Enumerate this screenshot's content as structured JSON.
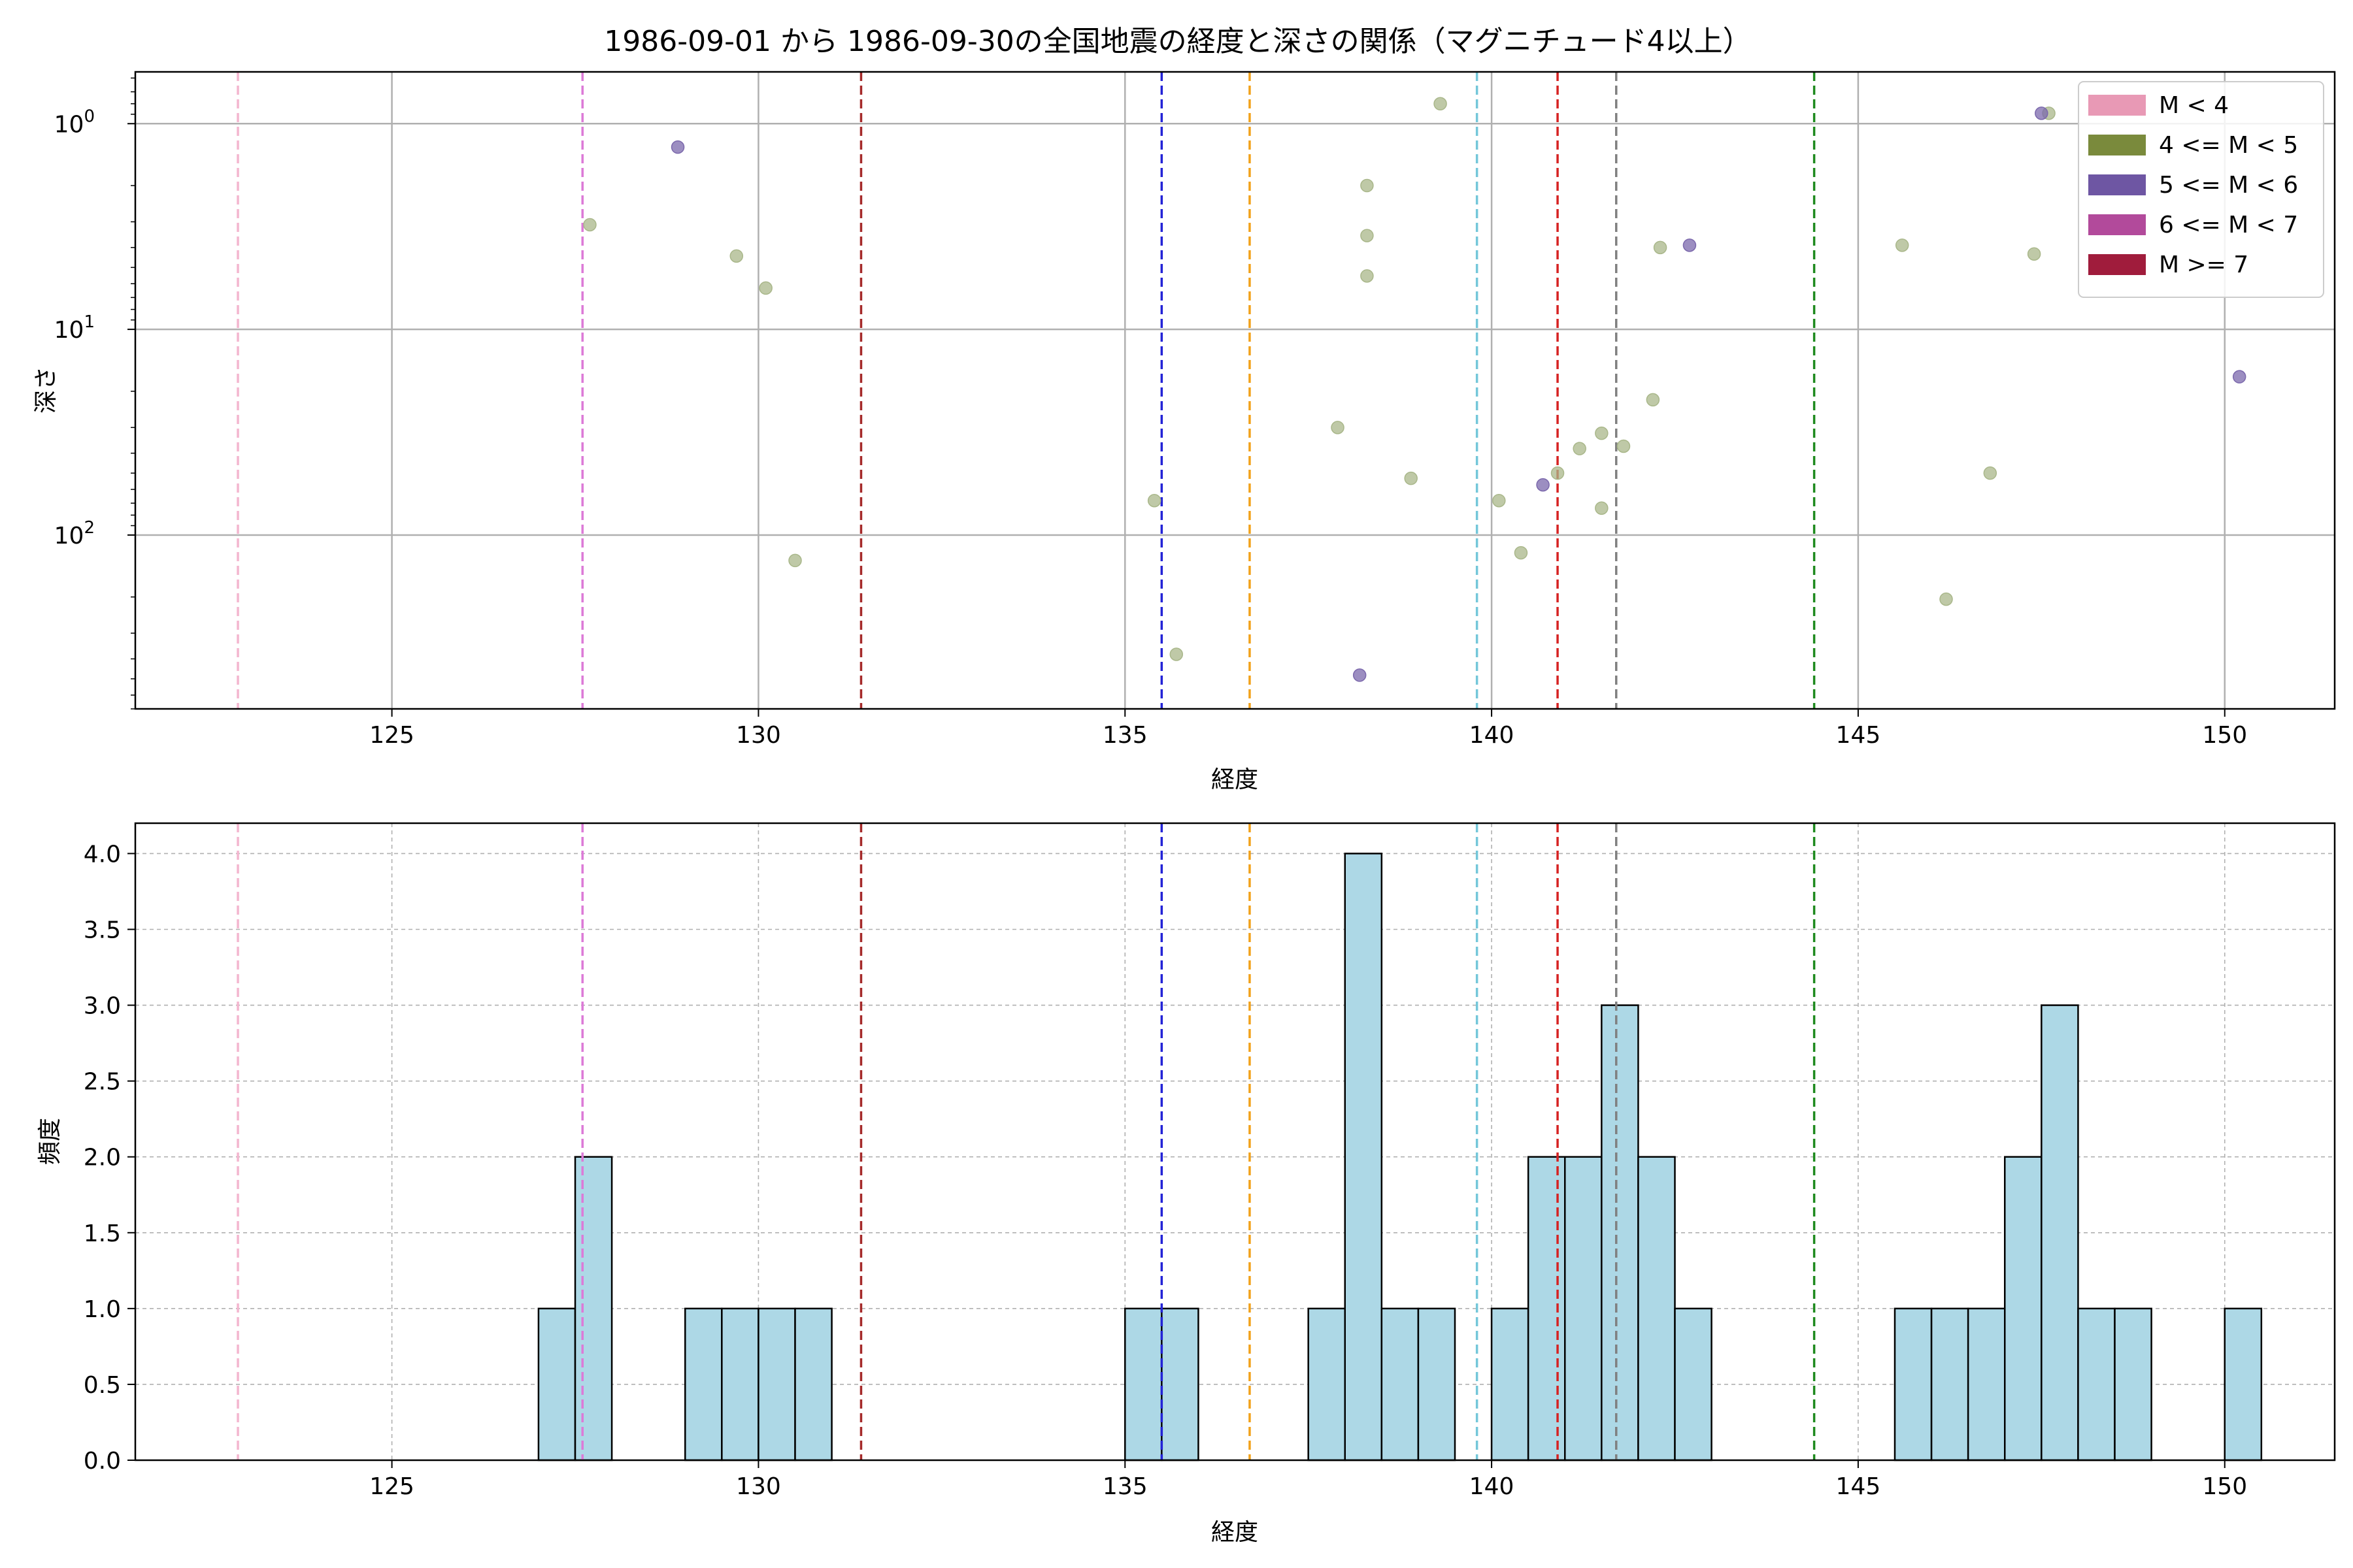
{
  "chart_data": [
    {
      "type": "scatter",
      "title": "1986-09-01 から 1986-09-30の全国地震の経度と深さの関係（マグニチュード4以上）",
      "xlabel": "経度",
      "ylabel": "深さ",
      "xlim": [
        121.5,
        151.5
      ],
      "ylim_log": [
        700,
        0.56
      ],
      "y_scale": "log",
      "y_inverted": true,
      "grid": true,
      "x_ticks": [
        125,
        130,
        135,
        140,
        145,
        150
      ],
      "x_tick_labels": [
        "125",
        "130",
        "135",
        "140",
        "145",
        "150"
      ],
      "y_ticks": [
        1,
        10,
        100
      ],
      "y_tick_labels": [
        "10^0",
        "10^1",
        "10^2"
      ],
      "legend": {
        "placement": "top-right",
        "entries": [
          {
            "label": "M < 4",
            "color": "#e899b5"
          },
          {
            "label": "4 <= M < 5",
            "color": "#7a8a3c"
          },
          {
            "label": "5 <= M < 6",
            "color": "#6e56a3"
          },
          {
            "label": "6 <= M < 7",
            "color": "#b24a9b"
          },
          {
            "label": "M >= 7",
            "color": "#a01c3c"
          }
        ]
      },
      "series": [
        {
          "color": "#a9b78a",
          "points": [
            [
              127.7,
              3.1
            ],
            [
              129.7,
              4.4
            ],
            [
              130.1,
              6.3
            ],
            [
              130.5,
              133
            ],
            [
              135.4,
              68
            ],
            [
              135.7,
              380
            ],
            [
              137.9,
              30
            ],
            [
              138.3,
              2.0
            ],
            [
              138.3,
              3.5
            ],
            [
              138.3,
              5.5
            ],
            [
              138.9,
              53
            ],
            [
              139.3,
              0.8
            ],
            [
              140.1,
              68
            ],
            [
              140.4,
              122
            ],
            [
              140.9,
              50
            ],
            [
              141.2,
              38
            ],
            [
              141.5,
              32
            ],
            [
              141.5,
              74
            ],
            [
              141.8,
              37
            ],
            [
              142.2,
              22
            ],
            [
              142.3,
              4.0
            ],
            [
              145.6,
              3.9
            ],
            [
              146.2,
              205
            ],
            [
              146.8,
              50
            ],
            [
              147.4,
              4.3
            ],
            [
              147.6,
              0.89
            ]
          ]
        },
        {
          "color": "#7b68ac",
          "points": [
            [
              128.9,
              1.3
            ],
            [
              138.2,
              480
            ],
            [
              140.7,
              57
            ],
            [
              142.7,
              3.9
            ],
            [
              147.5,
              0.89
            ],
            [
              150.2,
              17
            ]
          ]
        }
      ],
      "vlines": [
        {
          "x": 122.9,
          "color": "#f4b6cf"
        },
        {
          "x": 127.6,
          "color": "#dc7ad7"
        },
        {
          "x": 131.4,
          "color": "#a52a2a"
        },
        {
          "x": 135.5,
          "color": "#2323d6"
        },
        {
          "x": 136.7,
          "color": "#f2a11a"
        },
        {
          "x": 139.8,
          "color": "#74c7d9"
        },
        {
          "x": 140.9,
          "color": "#d62222"
        },
        {
          "x": 141.7,
          "color": "#808080"
        },
        {
          "x": 144.4,
          "color": "#1e8a1e"
        }
      ]
    },
    {
      "type": "bar",
      "xlabel": "経度",
      "ylabel": "頻度",
      "xlim": [
        121.5,
        151.5
      ],
      "ylim": [
        0,
        4.2
      ],
      "grid": true,
      "bin_width": 0.5,
      "bar_color": "#add8e6",
      "x_ticks": [
        125,
        130,
        135,
        140,
        145,
        150
      ],
      "x_tick_labels": [
        "125",
        "130",
        "135",
        "140",
        "145",
        "150"
      ],
      "y_ticks": [
        0,
        0.5,
        1.0,
        1.5,
        2.0,
        2.5,
        3.0,
        3.5,
        4.0
      ],
      "y_tick_labels": [
        "0.0",
        "0.5",
        "1.0",
        "1.5",
        "2.0",
        "2.5",
        "3.0",
        "3.5",
        "4.0"
      ],
      "bins": [
        {
          "x": 127.0,
          "count": 1
        },
        {
          "x": 127.5,
          "count": 2
        },
        {
          "x": 129.0,
          "count": 1
        },
        {
          "x": 129.5,
          "count": 1
        },
        {
          "x": 130.0,
          "count": 1
        },
        {
          "x": 130.5,
          "count": 1
        },
        {
          "x": 135.0,
          "count": 1
        },
        {
          "x": 135.5,
          "count": 1
        },
        {
          "x": 137.5,
          "count": 1
        },
        {
          "x": 138.0,
          "count": 4
        },
        {
          "x": 138.5,
          "count": 1
        },
        {
          "x": 139.0,
          "count": 1
        },
        {
          "x": 140.0,
          "count": 1
        },
        {
          "x": 140.5,
          "count": 2
        },
        {
          "x": 141.0,
          "count": 2
        },
        {
          "x": 141.5,
          "count": 3
        },
        {
          "x": 142.0,
          "count": 2
        },
        {
          "x": 142.5,
          "count": 1
        },
        {
          "x": 145.5,
          "count": 1
        },
        {
          "x": 146.0,
          "count": 1
        },
        {
          "x": 146.5,
          "count": 1
        },
        {
          "x": 147.0,
          "count": 2
        },
        {
          "x": 147.5,
          "count": 3
        },
        {
          "x": 148.0,
          "count": 1
        },
        {
          "x": 148.5,
          "count": 1
        },
        {
          "x": 150.0,
          "count": 1
        }
      ],
      "vlines": [
        {
          "x": 122.9,
          "color": "#f4b6cf"
        },
        {
          "x": 127.6,
          "color": "#dc7ad7"
        },
        {
          "x": 131.4,
          "color": "#a52a2a"
        },
        {
          "x": 135.5,
          "color": "#2323d6"
        },
        {
          "x": 136.7,
          "color": "#f2a11a"
        },
        {
          "x": 139.8,
          "color": "#74c7d9"
        },
        {
          "x": 140.9,
          "color": "#d62222"
        },
        {
          "x": 141.7,
          "color": "#808080"
        },
        {
          "x": 144.4,
          "color": "#1e8a1e"
        }
      ]
    }
  ]
}
